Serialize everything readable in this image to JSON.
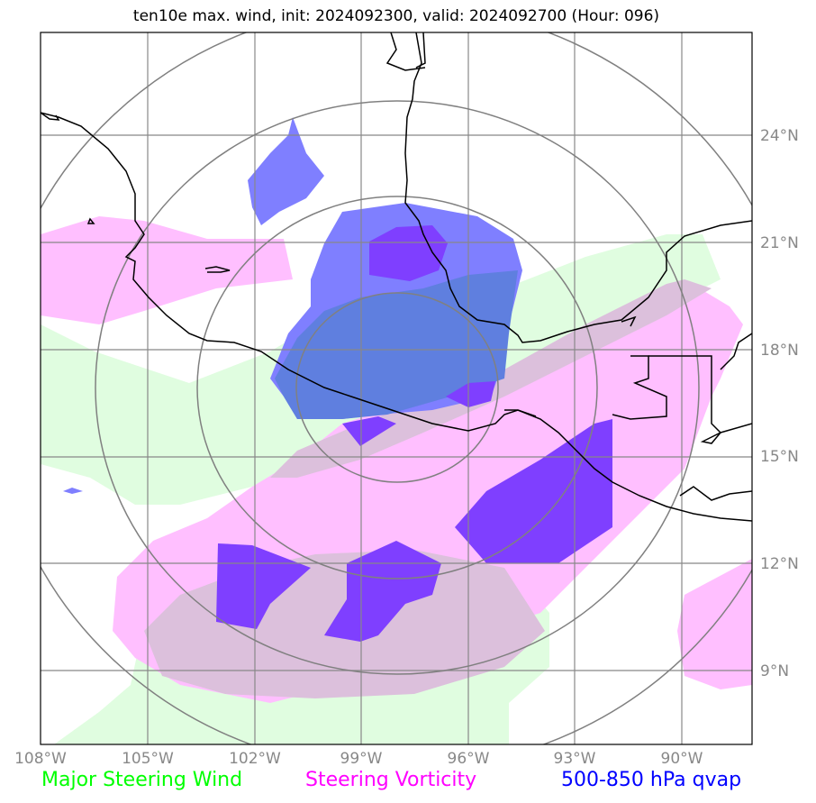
{
  "title": "ten10e max. wind, init: 2024092300, valid: 2024092700 (Hour: 096)",
  "x_ticks": [
    "108°W",
    "105°W",
    "102°W",
    "99°W",
    "96°W",
    "93°W",
    "90°W"
  ],
  "y_ticks": [
    "24°N",
    "21°N",
    "18°N",
    "15°N",
    "12°N",
    "9°N"
  ],
  "legend": [
    {
      "label": "Major Steering Wind",
      "color": "#00ff00"
    },
    {
      "label": "Steering Vorticity",
      "color": "#ff00ff"
    },
    {
      "label": "500-850 hPa qvap",
      "color": "#0000ff"
    }
  ],
  "colors": {
    "steering_wind_fill": "#e0fde0",
    "vorticity_fill": "#ffbfff",
    "overlap_fill": "#dcc0dc",
    "qvap_light": "#7f7fff",
    "qvap_dark": "#7f3fff",
    "qvap_overlap": "#5f7fdf",
    "grid": "#888888",
    "coast": "#000000"
  },
  "map_extent": {
    "lon_min": -108,
    "lon_max": -88,
    "lat_min": 7,
    "lat_max": 27
  }
}
